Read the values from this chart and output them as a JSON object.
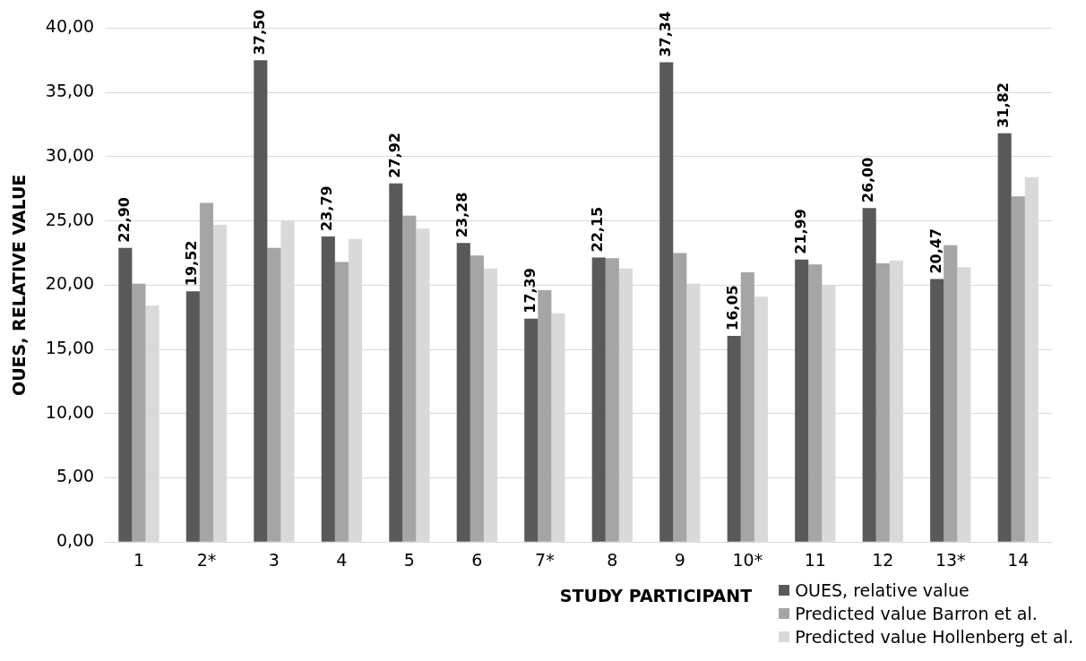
{
  "chart_data": {
    "type": "bar",
    "xlabel": "STUDY PARTICIPANT",
    "ylabel": "OUES, RELATIVE VALUE",
    "categories": [
      "1",
      "2*",
      "3",
      "4",
      "5",
      "6",
      "7*",
      "8",
      "9",
      "10*",
      "11",
      "12",
      "13*",
      "14"
    ],
    "series": [
      {
        "name": "OUES, relative value",
        "color": "#595959",
        "values": [
          22.9,
          19.52,
          37.5,
          23.79,
          27.92,
          23.28,
          17.39,
          22.15,
          37.34,
          16.05,
          21.99,
          26.0,
          20.47,
          31.82
        ],
        "value_labels": [
          "22,90",
          "19,52",
          "37,50",
          "23,79",
          "27,92",
          "23,28",
          "17,39",
          "22,15",
          "37,34",
          "16,05",
          "21,99",
          "26,00",
          "20,47",
          "31,82"
        ]
      },
      {
        "name": "Predicted value Barron et al.",
        "color": "#a5a5a5",
        "values": [
          20.1,
          26.4,
          22.9,
          21.8,
          25.4,
          22.3,
          19.6,
          22.1,
          22.5,
          21.0,
          21.6,
          21.7,
          23.1,
          26.9
        ]
      },
      {
        "name": "Predicted value Hollenberg et al.",
        "color": "#d9d9d9",
        "values": [
          18.4,
          24.7,
          25.0,
          23.6,
          24.4,
          21.3,
          17.8,
          21.3,
          20.1,
          19.1,
          20.0,
          21.9,
          21.4,
          28.4
        ]
      }
    ],
    "ylim": [
      0,
      40
    ],
    "yticks": [
      {
        "value": 0,
        "label": "0,00"
      },
      {
        "value": 5,
        "label": "5,00"
      },
      {
        "value": 10,
        "label": "10,00"
      },
      {
        "value": 15,
        "label": "15,00"
      },
      {
        "value": 20,
        "label": "20,00"
      },
      {
        "value": 25,
        "label": "25,00"
      },
      {
        "value": 30,
        "label": "30,00"
      },
      {
        "value": 35,
        "label": "35,00"
      },
      {
        "value": 40,
        "label": "40,00"
      }
    ],
    "grid": "y",
    "legend": "bottom right"
  }
}
